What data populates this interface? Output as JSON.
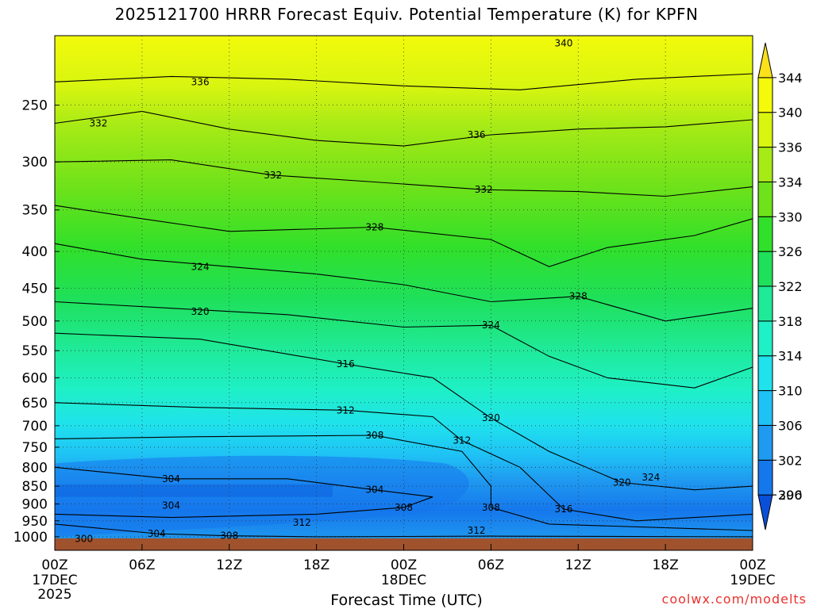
{
  "chart_data": {
    "type": "heatmap",
    "title": "2025121700 HRRR Forecast Equiv. Potential Temperature (K) for KPFN",
    "xlabel": "Forecast Time (UTC)",
    "credit": "coolwx.com/modelts",
    "x_ticks": [
      {
        "hours": 0,
        "label": "00Z",
        "sub": "17DEC",
        "sub2": "2025"
      },
      {
        "hours": 6,
        "label": "06Z",
        "sub": "",
        "sub2": ""
      },
      {
        "hours": 12,
        "label": "12Z",
        "sub": "",
        "sub2": ""
      },
      {
        "hours": 18,
        "label": "18Z",
        "sub": "",
        "sub2": ""
      },
      {
        "hours": 24,
        "label": "00Z",
        "sub": "18DEC",
        "sub2": ""
      },
      {
        "hours": 30,
        "label": "06Z",
        "sub": "",
        "sub2": ""
      },
      {
        "hours": 36,
        "label": "12Z",
        "sub": "",
        "sub2": ""
      },
      {
        "hours": 42,
        "label": "18Z",
        "sub": "",
        "sub2": ""
      },
      {
        "hours": 48,
        "label": "00Z",
        "sub": "19DEC",
        "sub2": ""
      }
    ],
    "xlim_hours": [
      0,
      48
    ],
    "y_ticks": [
      250,
      300,
      350,
      400,
      450,
      500,
      550,
      600,
      650,
      700,
      750,
      800,
      850,
      900,
      950,
      1000
    ],
    "ylim_hPa": [
      200,
      1013
    ],
    "y_scale": "log",
    "grid": true,
    "colorbar": {
      "levels": [
        296,
        300,
        302,
        306,
        310,
        314,
        318,
        322,
        326,
        330,
        334,
        336,
        340,
        344
      ],
      "colors": [
        "#0a4fd8",
        "#1577ec",
        "#1f9af0",
        "#1fc2f5",
        "#1fe2ec",
        "#1ff0c6",
        "#1fea98",
        "#1fe05a",
        "#31e02a",
        "#6ee21a",
        "#a6ea16",
        "#d8f510",
        "#f5fa0a",
        "#fae11a"
      ]
    },
    "contour_labels": [
      {
        "value": "340",
        "h": 35.0,
        "p": 205
      },
      {
        "value": "336",
        "h": 10.0,
        "p": 232
      },
      {
        "value": "336",
        "h": 29.0,
        "p": 275
      },
      {
        "value": "332",
        "h": 3.0,
        "p": 265
      },
      {
        "value": "332",
        "h": 15.0,
        "p": 313
      },
      {
        "value": "332",
        "h": 29.5,
        "p": 328
      },
      {
        "value": "328",
        "h": 22.0,
        "p": 370
      },
      {
        "value": "328",
        "h": 36.0,
        "p": 462
      },
      {
        "value": "324",
        "h": 10.0,
        "p": 420
      },
      {
        "value": "324",
        "h": 30.0,
        "p": 507
      },
      {
        "value": "324",
        "h": 41.0,
        "p": 826
      },
      {
        "value": "320",
        "h": 10.0,
        "p": 485
      },
      {
        "value": "320",
        "h": 30.0,
        "p": 683
      },
      {
        "value": "320",
        "h": 39.0,
        "p": 840
      },
      {
        "value": "316",
        "h": 20.0,
        "p": 574
      },
      {
        "value": "316",
        "h": 35.0,
        "p": 915
      },
      {
        "value": "312",
        "h": 20.0,
        "p": 666
      },
      {
        "value": "312",
        "h": 28.0,
        "p": 734
      },
      {
        "value": "312",
        "h": 17.0,
        "p": 955
      },
      {
        "value": "312",
        "h": 29.0,
        "p": 980
      },
      {
        "value": "308",
        "h": 22.0,
        "p": 722
      },
      {
        "value": "308",
        "h": 24.0,
        "p": 910
      },
      {
        "value": "308",
        "h": 30.0,
        "p": 910
      },
      {
        "value": "308",
        "h": 12.0,
        "p": 997
      },
      {
        "value": "304",
        "h": 8.0,
        "p": 830
      },
      {
        "value": "304",
        "h": 22.0,
        "p": 860
      },
      {
        "value": "304",
        "h": 8.0,
        "p": 905
      },
      {
        "value": "304",
        "h": 7.0,
        "p": 990
      },
      {
        "value": "300",
        "h": 2.0,
        "p": 1006
      }
    ]
  }
}
